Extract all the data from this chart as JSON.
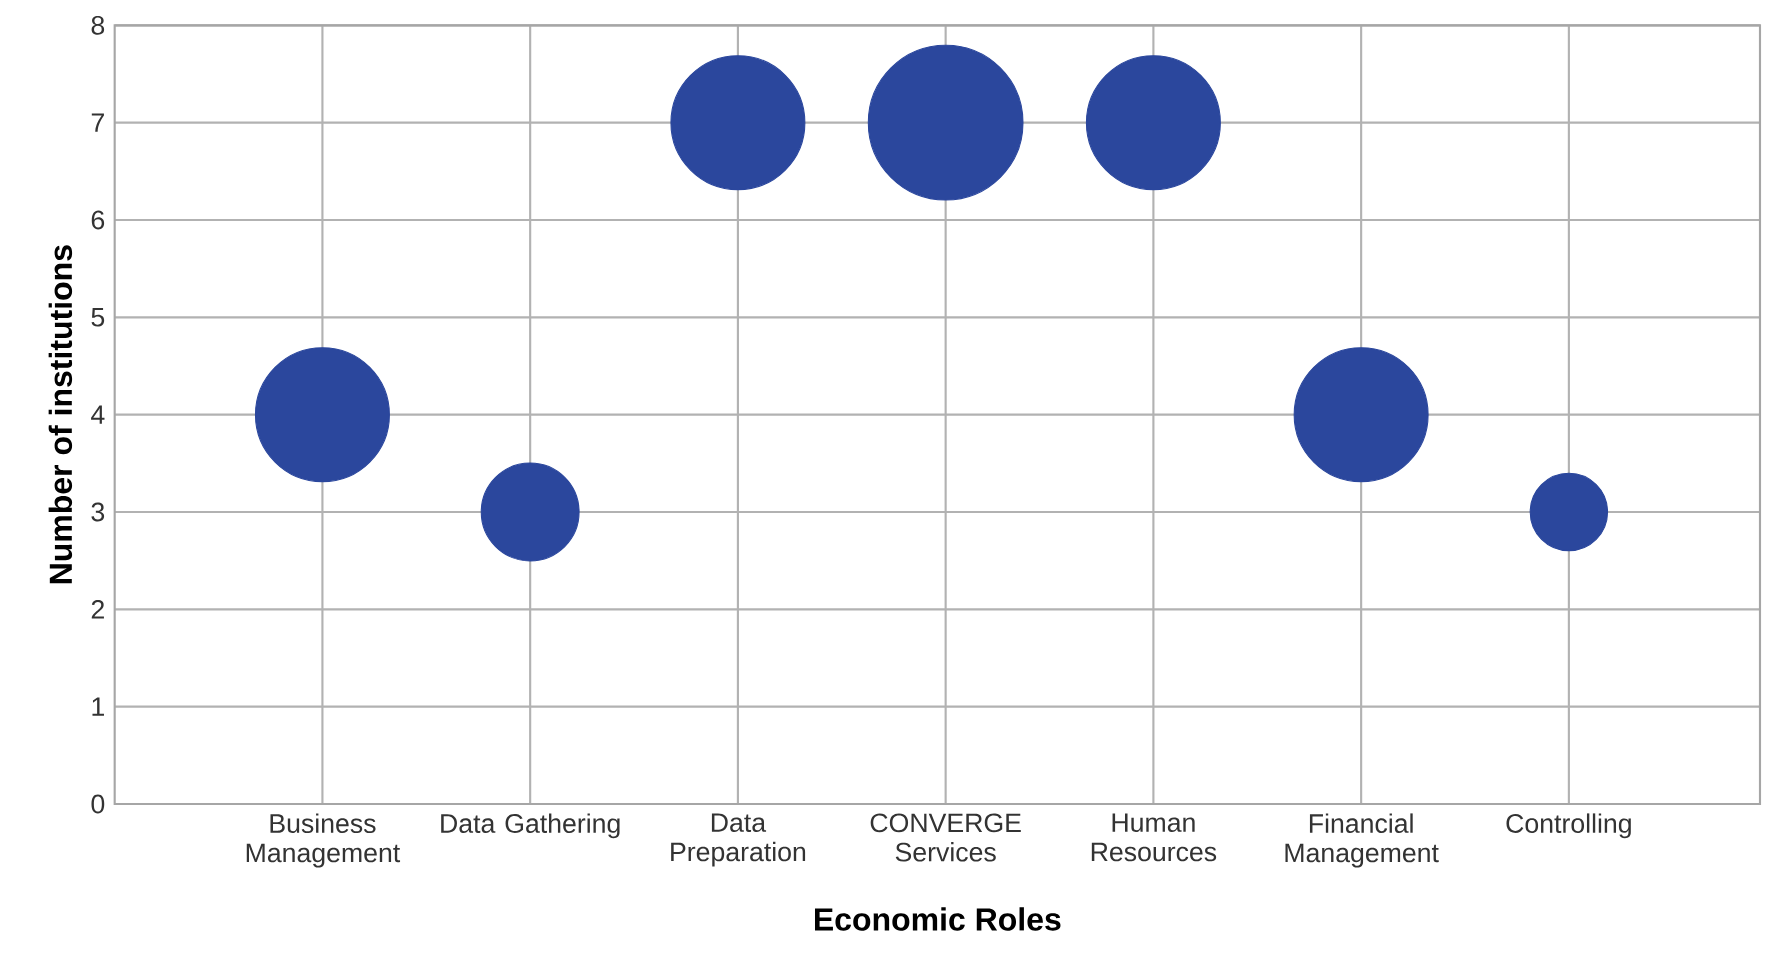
{
  "chart_data": {
    "type": "bubble",
    "xlabel": "Economic Roles",
    "ylabel": "Number of institutions",
    "categories": [
      "Business Management",
      "Data Gathering",
      "Data Preparation",
      "CONVERGE Services",
      "Human Resources",
      "Financial Management",
      "Controlling"
    ],
    "values": [
      4,
      3,
      7,
      7,
      7,
      4,
      3
    ],
    "sizes": [
      0.75,
      0.4,
      0.75,
      1,
      0.75,
      0.75,
      0.25
    ],
    "color": "#2b479d",
    "ylim": [
      0,
      8
    ],
    "yticks": [
      0,
      1,
      2,
      3,
      4,
      5,
      6,
      7,
      8
    ],
    "grid": true
  }
}
